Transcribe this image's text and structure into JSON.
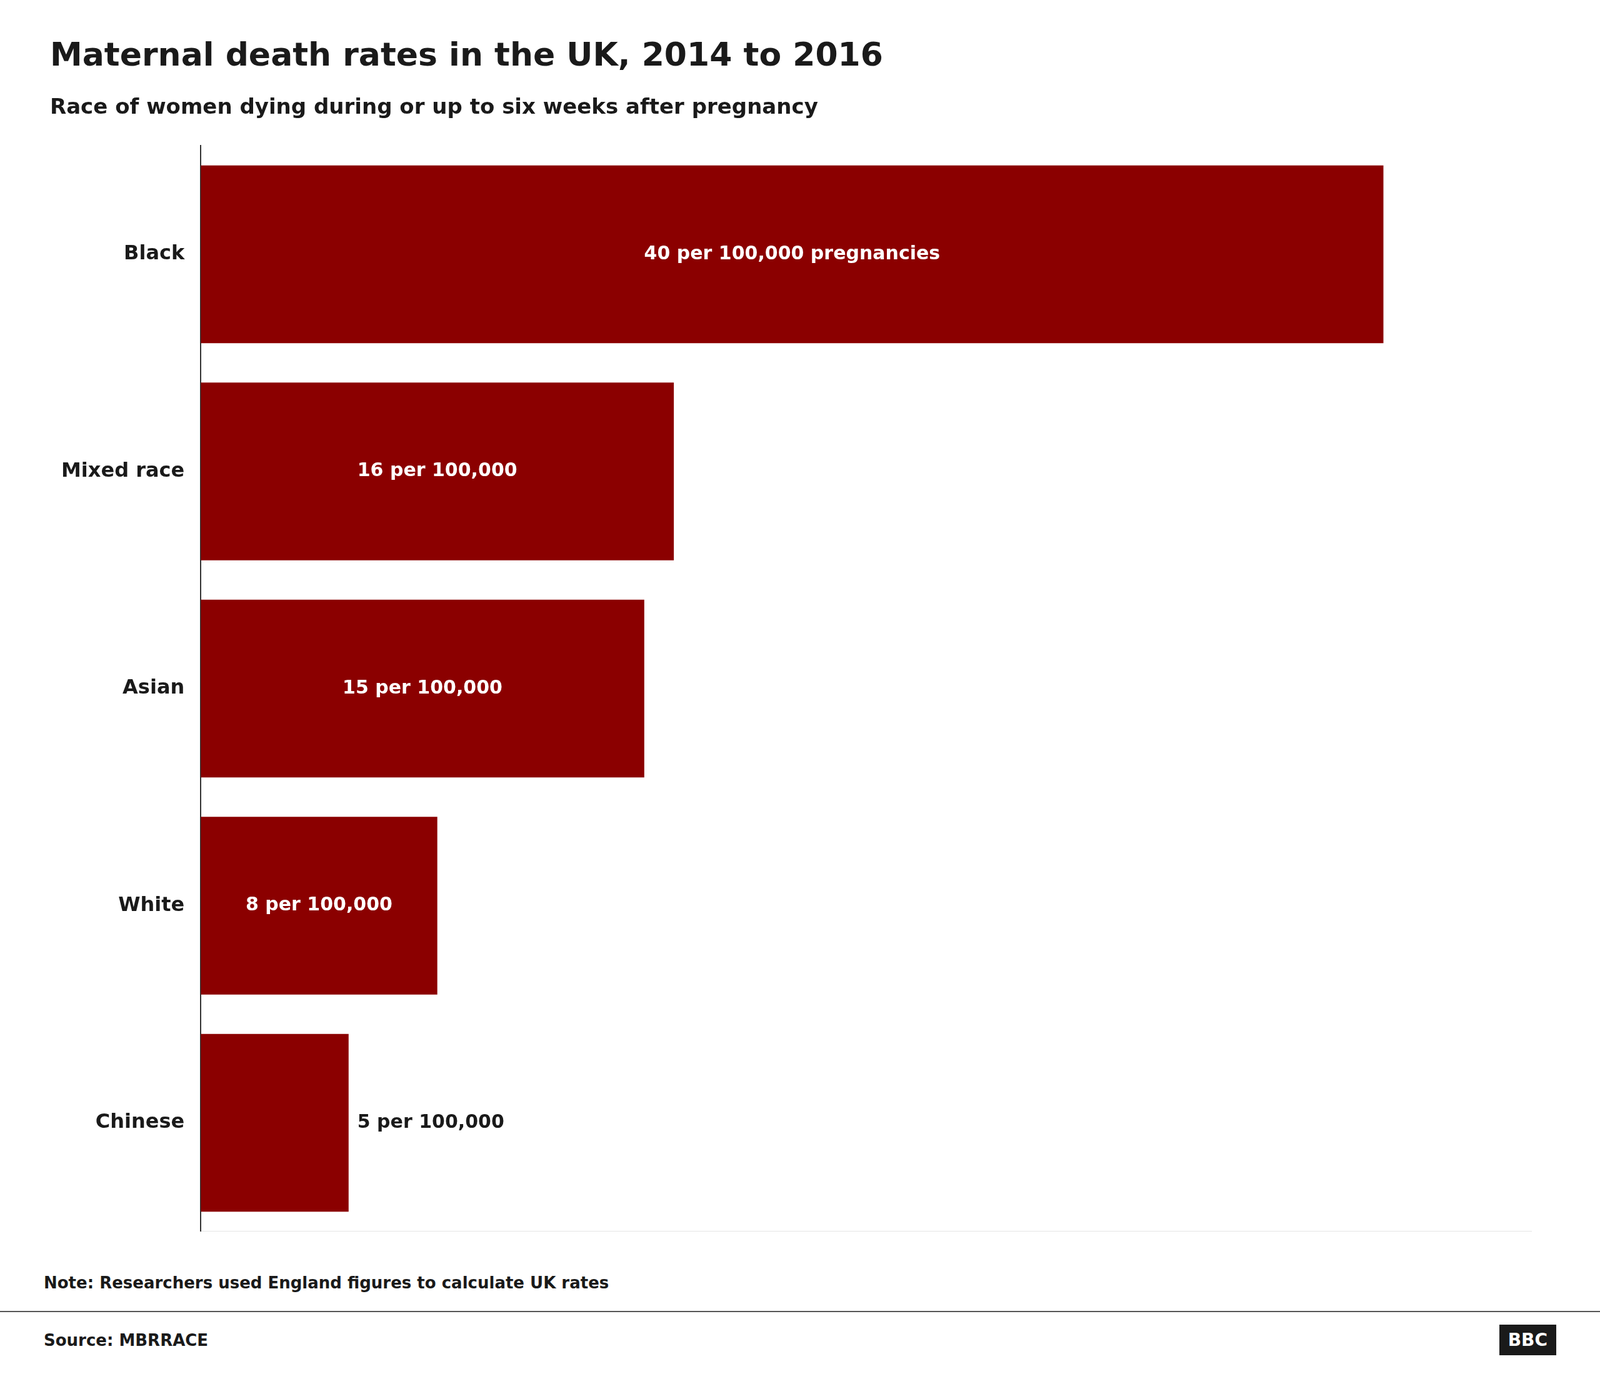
{
  "chart_data": {
    "type": "bar",
    "orientation": "horizontal",
    "title": "Maternal death rates in the UK, 2014 to 2016",
    "subtitle": "Race of women dying during or up to six weeks after pregnancy",
    "categories": [
      "Black",
      "Mixed race",
      "Asian",
      "White",
      "Chinese"
    ],
    "values": [
      40,
      16,
      15,
      8,
      5
    ],
    "value_labels": [
      "40 per 100,000 pregnancies",
      "16 per 100,000",
      "15 per 100,000",
      "8 per 100,000",
      "5 per 100,000"
    ],
    "data_labels": true,
    "color": "#8B0000",
    "xlim": [
      0,
      45
    ],
    "tick_labels": "y",
    "grid": false,
    "annotations": [
      "Note: Researchers used England figures to calculate UK rates",
      "Source: MBRRACE",
      "BBC"
    ]
  }
}
